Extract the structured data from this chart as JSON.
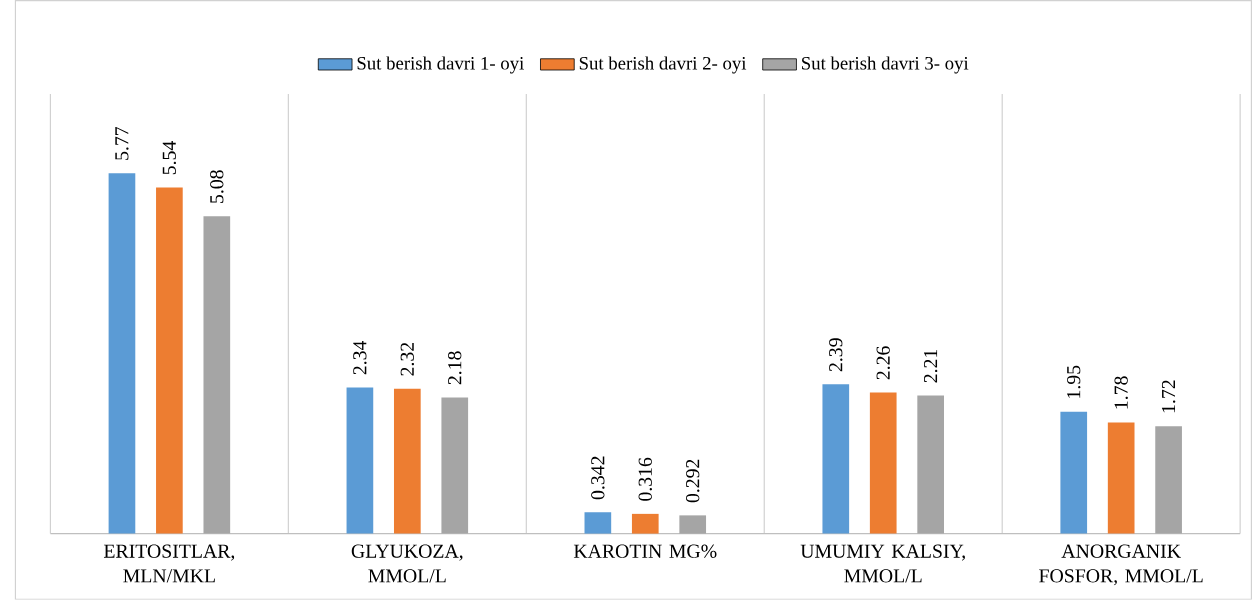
{
  "chart_data": {
    "type": "bar",
    "categories": [
      "ERITOSITLAR, MLN/MKL",
      "GLYUKOZA, MMOL/L",
      "KAROTIN MG%",
      "UMUMIY KALSIY, MMOL/L",
      "ANORGANIK FOSFOR, MMOL/L"
    ],
    "series": [
      {
        "name": "Sut berish davri 1- oyi",
        "color": "#5b9bd5",
        "values": [
          5.77,
          2.34,
          0.342,
          2.39,
          1.95
        ]
      },
      {
        "name": "Sut berish davri 2- oyi",
        "color": "#ed7d31",
        "values": [
          5.54,
          2.32,
          0.316,
          2.26,
          1.78
        ]
      },
      {
        "name": "Sut berish davri 3- oyi",
        "color": "#a5a5a5",
        "values": [
          5.08,
          2.18,
          0.292,
          2.21,
          1.72
        ]
      }
    ],
    "data_labels": true,
    "grid": "x",
    "legend": "top"
  }
}
